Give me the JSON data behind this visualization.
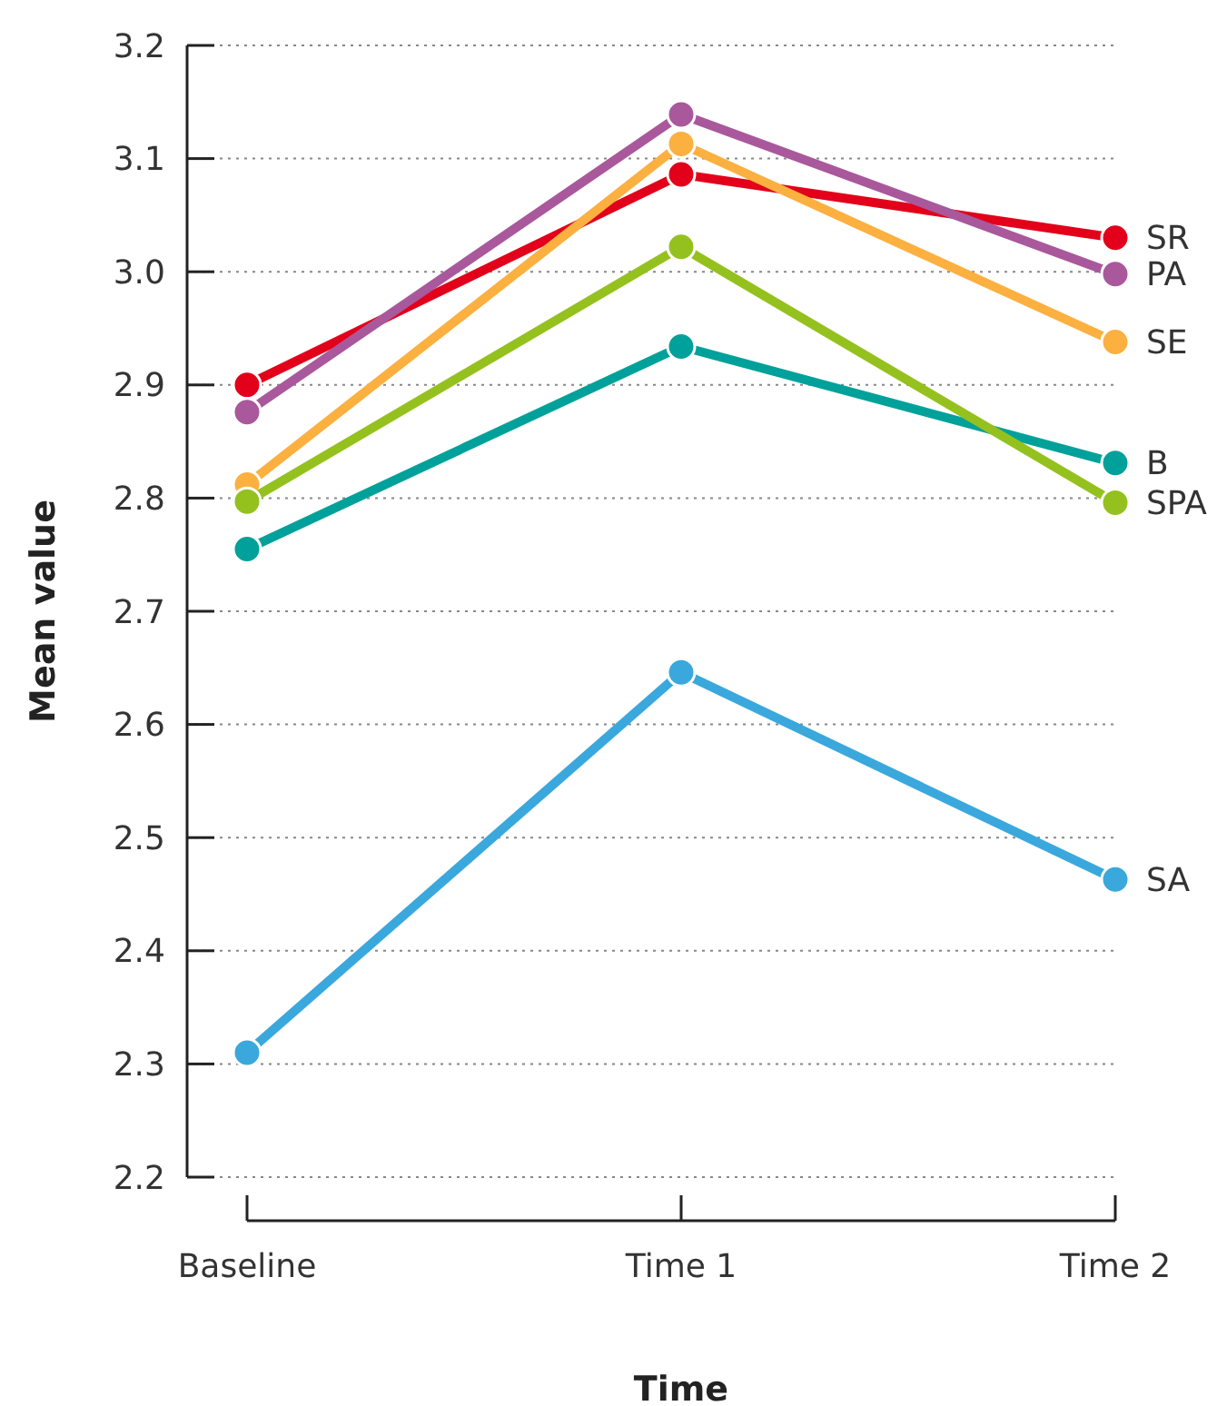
{
  "chart_data": {
    "type": "line",
    "xlabel": "Time",
    "ylabel": "Mean value",
    "categories": [
      "Baseline",
      "Time 1",
      "Time 2"
    ],
    "series": [
      {
        "name": "SR",
        "color": "#e2001a",
        "values": [
          2.9,
          3.086,
          3.03
        ]
      },
      {
        "name": "PA",
        "color": "#a9589c",
        "values": [
          2.876,
          3.139,
          2.998
        ]
      },
      {
        "name": "SE",
        "color": "#fbb040",
        "values": [
          2.812,
          3.113,
          2.938
        ]
      },
      {
        "name": "B",
        "color": "#00a19a",
        "values": [
          2.755,
          2.934,
          2.831
        ]
      },
      {
        "name": "SPA",
        "color": "#95c11f",
        "values": [
          2.797,
          3.022,
          2.796
        ]
      },
      {
        "name": "SA",
        "color": "#3aa8dc",
        "values": [
          2.31,
          2.646,
          2.463
        ]
      }
    ],
    "ylim": [
      2.2,
      3.2
    ],
    "yticks": [
      {
        "value": 2.2,
        "label": "2.2"
      },
      {
        "value": 2.3,
        "label": "2.3"
      },
      {
        "value": 2.4,
        "label": "2.4"
      },
      {
        "value": 2.5,
        "label": "2.5"
      },
      {
        "value": 2.6,
        "label": "2.6"
      },
      {
        "value": 2.7,
        "label": "2.7"
      },
      {
        "value": 2.8,
        "label": "2.8"
      },
      {
        "value": 2.9,
        "label": "2.9"
      },
      {
        "value": 3.0,
        "label": "3.0"
      },
      {
        "value": 3.1,
        "label": "3.1"
      },
      {
        "value": 3.2,
        "label": "3.2"
      }
    ],
    "grid": "y",
    "marker": "circle",
    "line_style": "solid"
  }
}
